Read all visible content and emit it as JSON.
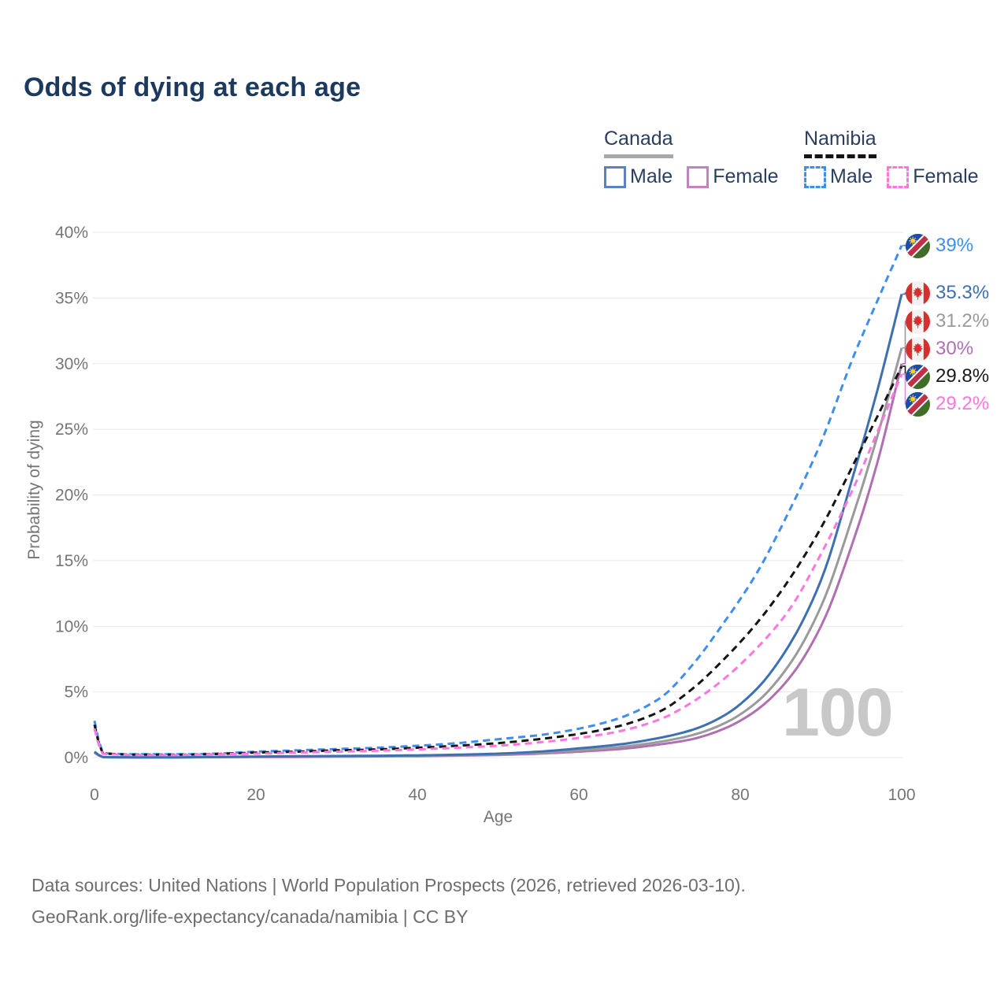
{
  "title": "Odds of dying at each age",
  "legend": {
    "groups": [
      {
        "country": "Canada",
        "underline_color": "#a8a8a8",
        "underline_style": "solid",
        "items": [
          {
            "label": "Male",
            "color": "#5b82c0",
            "dashed": false
          },
          {
            "label": "Female",
            "color": "#c583bd",
            "dashed": false
          }
        ]
      },
      {
        "country": "Namibia",
        "underline_color": "#141414",
        "underline_style": "dashed",
        "items": [
          {
            "label": "Male",
            "color": "#3e8ef2",
            "dashed": true
          },
          {
            "label": "Female",
            "color": "#ff76de",
            "dashed": true
          }
        ]
      }
    ]
  },
  "chart_data": {
    "type": "line",
    "title": "Odds of dying at each age",
    "xlabel": "Age",
    "ylabel": "Probability of dying",
    "xlim": [
      0,
      100
    ],
    "ylim_percent": [
      0,
      40
    ],
    "grid": "horizontal-only",
    "x_ticks": [
      {
        "value": 0,
        "label": "0"
      },
      {
        "value": 20,
        "label": "20"
      },
      {
        "value": 40,
        "label": "40"
      },
      {
        "value": 60,
        "label": "60"
      },
      {
        "value": 80,
        "label": "80"
      },
      {
        "value": 100,
        "label": "100"
      }
    ],
    "y_ticks": [
      {
        "value": 0,
        "label": "0%"
      },
      {
        "value": 5,
        "label": "5%"
      },
      {
        "value": 10,
        "label": "10%"
      },
      {
        "value": 15,
        "label": "15%"
      },
      {
        "value": 20,
        "label": "20%"
      },
      {
        "value": 25,
        "label": "25%"
      },
      {
        "value": 30,
        "label": "30%"
      },
      {
        "value": 35,
        "label": "35%"
      },
      {
        "value": 40,
        "label": "40%"
      }
    ],
    "ages": [
      0,
      1,
      2,
      5,
      10,
      15,
      20,
      25,
      30,
      35,
      40,
      45,
      50,
      55,
      60,
      65,
      70,
      74,
      78,
      82,
      86,
      90,
      94,
      97,
      100
    ],
    "series": [
      {
        "key": "canada-female",
        "name": "Canada Female",
        "color": "#b06fb2",
        "dashed": false,
        "values_percent": [
          0.38,
          0.04,
          0.02,
          0.02,
          0.02,
          0.03,
          0.04,
          0.05,
          0.07,
          0.09,
          0.11,
          0.15,
          0.2,
          0.3,
          0.45,
          0.65,
          1.0,
          1.4,
          2.2,
          3.6,
          6.0,
          10.0,
          16.5,
          22.5,
          30.0
        ]
      },
      {
        "key": "canada-both",
        "name": "Canada Both sexes",
        "color": "#9a9a9a",
        "dashed": false,
        "values_percent": [
          0.42,
          0.04,
          0.03,
          0.02,
          0.02,
          0.04,
          0.06,
          0.08,
          0.09,
          0.11,
          0.14,
          0.18,
          0.25,
          0.37,
          0.55,
          0.8,
          1.2,
          1.7,
          2.6,
          4.2,
          7.0,
          11.5,
          18.5,
          24.5,
          31.2
        ]
      },
      {
        "key": "canada-male",
        "name": "Canada Male",
        "color": "#3d6fb3",
        "dashed": false,
        "values_percent": [
          0.45,
          0.05,
          0.03,
          0.02,
          0.02,
          0.05,
          0.08,
          0.1,
          0.12,
          0.14,
          0.17,
          0.22,
          0.3,
          0.45,
          0.7,
          1.0,
          1.5,
          2.1,
          3.2,
          5.2,
          8.5,
          13.5,
          21.5,
          28.0,
          35.3
        ]
      },
      {
        "key": "namibia-male",
        "name": "Namibia Male",
        "color": "#3e8ef2",
        "dashed": true,
        "values_percent": [
          2.8,
          0.4,
          0.3,
          0.25,
          0.25,
          0.3,
          0.45,
          0.55,
          0.65,
          0.75,
          0.9,
          1.1,
          1.4,
          1.7,
          2.2,
          3.0,
          4.5,
          7.0,
          10.3,
          14.0,
          18.7,
          24.0,
          30.5,
          34.8,
          39.0
        ]
      },
      {
        "key": "namibia-both",
        "name": "Namibia Both sexes",
        "color": "#141414",
        "dashed": true,
        "values_percent": [
          2.5,
          0.35,
          0.28,
          0.22,
          0.22,
          0.27,
          0.38,
          0.45,
          0.55,
          0.62,
          0.75,
          0.9,
          1.1,
          1.4,
          1.8,
          2.4,
          3.5,
          5.2,
          7.5,
          10.2,
          13.5,
          17.5,
          22.3,
          26.0,
          29.8
        ]
      },
      {
        "key": "namibia-female",
        "name": "Namibia Female",
        "color": "#ff76de",
        "dashed": true,
        "values_percent": [
          2.2,
          0.3,
          0.25,
          0.2,
          0.2,
          0.25,
          0.3,
          0.38,
          0.45,
          0.52,
          0.62,
          0.75,
          0.9,
          1.15,
          1.5,
          2.0,
          2.9,
          4.2,
          6.0,
          8.3,
          11.2,
          15.5,
          20.5,
          24.8,
          29.2
        ]
      }
    ],
    "end_labels": [
      {
        "series": "namibia-male",
        "flag": "namibia",
        "text": "39%",
        "color": "#3e8ef2"
      },
      {
        "series": "canada-male",
        "flag": "canada",
        "text": "35.3%",
        "color": "#3d6fb3"
      },
      {
        "series": "canada-both",
        "flag": "canada",
        "text": "31.2%",
        "color": "#9a9a9a"
      },
      {
        "series": "canada-female",
        "flag": "canada",
        "text": "30%",
        "color": "#b06fb2"
      },
      {
        "series": "namibia-both",
        "flag": "namibia",
        "text": "29.8%",
        "color": "#1a1a1a"
      },
      {
        "series": "namibia-female",
        "flag": "namibia",
        "text": "29.2%",
        "color": "#ff76de"
      }
    ],
    "watermark": "100"
  },
  "footer": {
    "line1": "Data sources: United Nations | World Population Prospects (2026, retrieved 2026-03-10).",
    "line2": "GeoRank.org/life-expectancy/canada/namibia | CC BY"
  }
}
